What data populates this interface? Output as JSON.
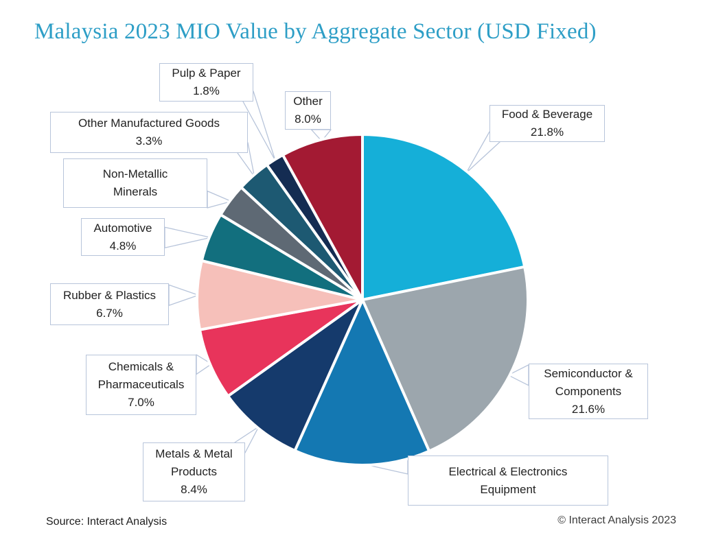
{
  "title": "Malaysia 2023 MIO Value by Aggregate Sector (USD Fixed)",
  "footer": {
    "source": "Source: Interact Analysis",
    "copyright": "© Interact Analysis 2023"
  },
  "style_colors": {
    "title_teal": "#2D9EC6",
    "callout_border": "#b7c4da",
    "slice_divider": "#ffffff"
  },
  "chart_data": {
    "type": "pie",
    "title": "Malaysia 2023 MIO Value by Aggregate Sector (USD Fixed)",
    "unit": "percent",
    "start_angle": "12-o-clock",
    "direction": "clockwise",
    "slices": [
      {
        "label": "Food & Beverage",
        "value": 21.8,
        "value_label": "21.8%",
        "color": "#15AFD8"
      },
      {
        "label": "Semiconductor & Components",
        "value": 21.6,
        "value_label": "21.6%",
        "color": "#9CA6AD"
      },
      {
        "label": "Electrical & Electronics Equipment",
        "value": 13.3,
        "value_label": "",
        "color": "#1478B2"
      },
      {
        "label": "Metals & Metal Products",
        "value": 8.4,
        "value_label": "8.4%",
        "color": "#153A6C"
      },
      {
        "label": "Chemicals & Pharmaceuticals",
        "value": 7.0,
        "value_label": "7.0%",
        "color": "#E8345B"
      },
      {
        "label": "Rubber & Plastics",
        "value": 6.7,
        "value_label": "6.7%",
        "color": "#F6C0BA"
      },
      {
        "label": "Automotive",
        "value": 4.8,
        "value_label": "4.8%",
        "color": "#126F7E"
      },
      {
        "label": "Non-Metallic Minerals",
        "value": 3.3,
        "value_label": "",
        "color": "#5E6974"
      },
      {
        "label": "Other Manufactured Goods",
        "value": 3.3,
        "value_label": "3.3%",
        "color": "#1D5972"
      },
      {
        "label": "Pulp & Paper",
        "value": 1.8,
        "value_label": "1.8%",
        "color": "#142C52"
      },
      {
        "label": "Other",
        "value": 8.0,
        "value_label": "8.0%",
        "color": "#A31A33"
      }
    ]
  },
  "callouts": [
    {
      "lines": [
        "Food & Beverage",
        "21.8%"
      ]
    },
    {
      "lines": [
        "Semiconductor &",
        "Components",
        "21.6%"
      ]
    },
    {
      "lines": [
        "Electrical & Electronics",
        "Equipment"
      ]
    },
    {
      "lines": [
        "Metals & Metal",
        "Products",
        "8.4%"
      ]
    },
    {
      "lines": [
        "Chemicals &",
        "Pharmaceuticals",
        "7.0%"
      ]
    },
    {
      "lines": [
        "Rubber & Plastics",
        "6.7%"
      ]
    },
    {
      "lines": [
        "Automotive",
        "4.8%"
      ]
    },
    {
      "lines": [
        "Non-Metallic",
        "Minerals"
      ]
    },
    {
      "lines": [
        "Other Manufactured Goods",
        "3.3%"
      ]
    },
    {
      "lines": [
        "Pulp & Paper",
        "1.8%"
      ]
    },
    {
      "lines": [
        "Other",
        "8.0%"
      ]
    }
  ]
}
